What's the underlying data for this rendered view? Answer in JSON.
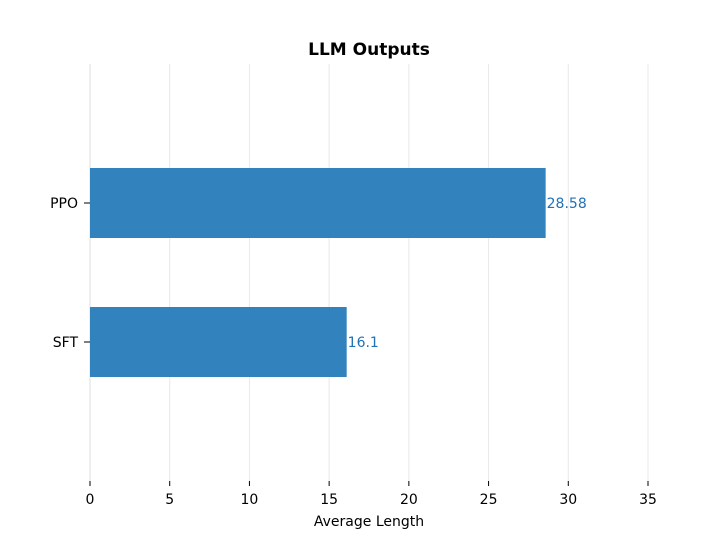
{
  "chart_data": {
    "type": "bar",
    "orientation": "horizontal",
    "title": "LLM Outputs",
    "xlabel": "Average Length",
    "ylabel": "",
    "categories": [
      "PPO",
      "SFT"
    ],
    "values": [
      28.58,
      16.1
    ],
    "value_labels": [
      "28.58",
      "16.1"
    ],
    "xlim": [
      0,
      35
    ],
    "xticks": [
      0,
      5,
      10,
      15,
      20,
      25,
      30,
      35
    ],
    "xtick_labels": [
      "0",
      "5",
      "10",
      "15",
      "20",
      "25",
      "30",
      "35"
    ],
    "grid": "vertical",
    "legend": "none",
    "bar_color": "#3182bd",
    "label_color": "#2171b5",
    "grid_color": "#e8e8e8"
  }
}
